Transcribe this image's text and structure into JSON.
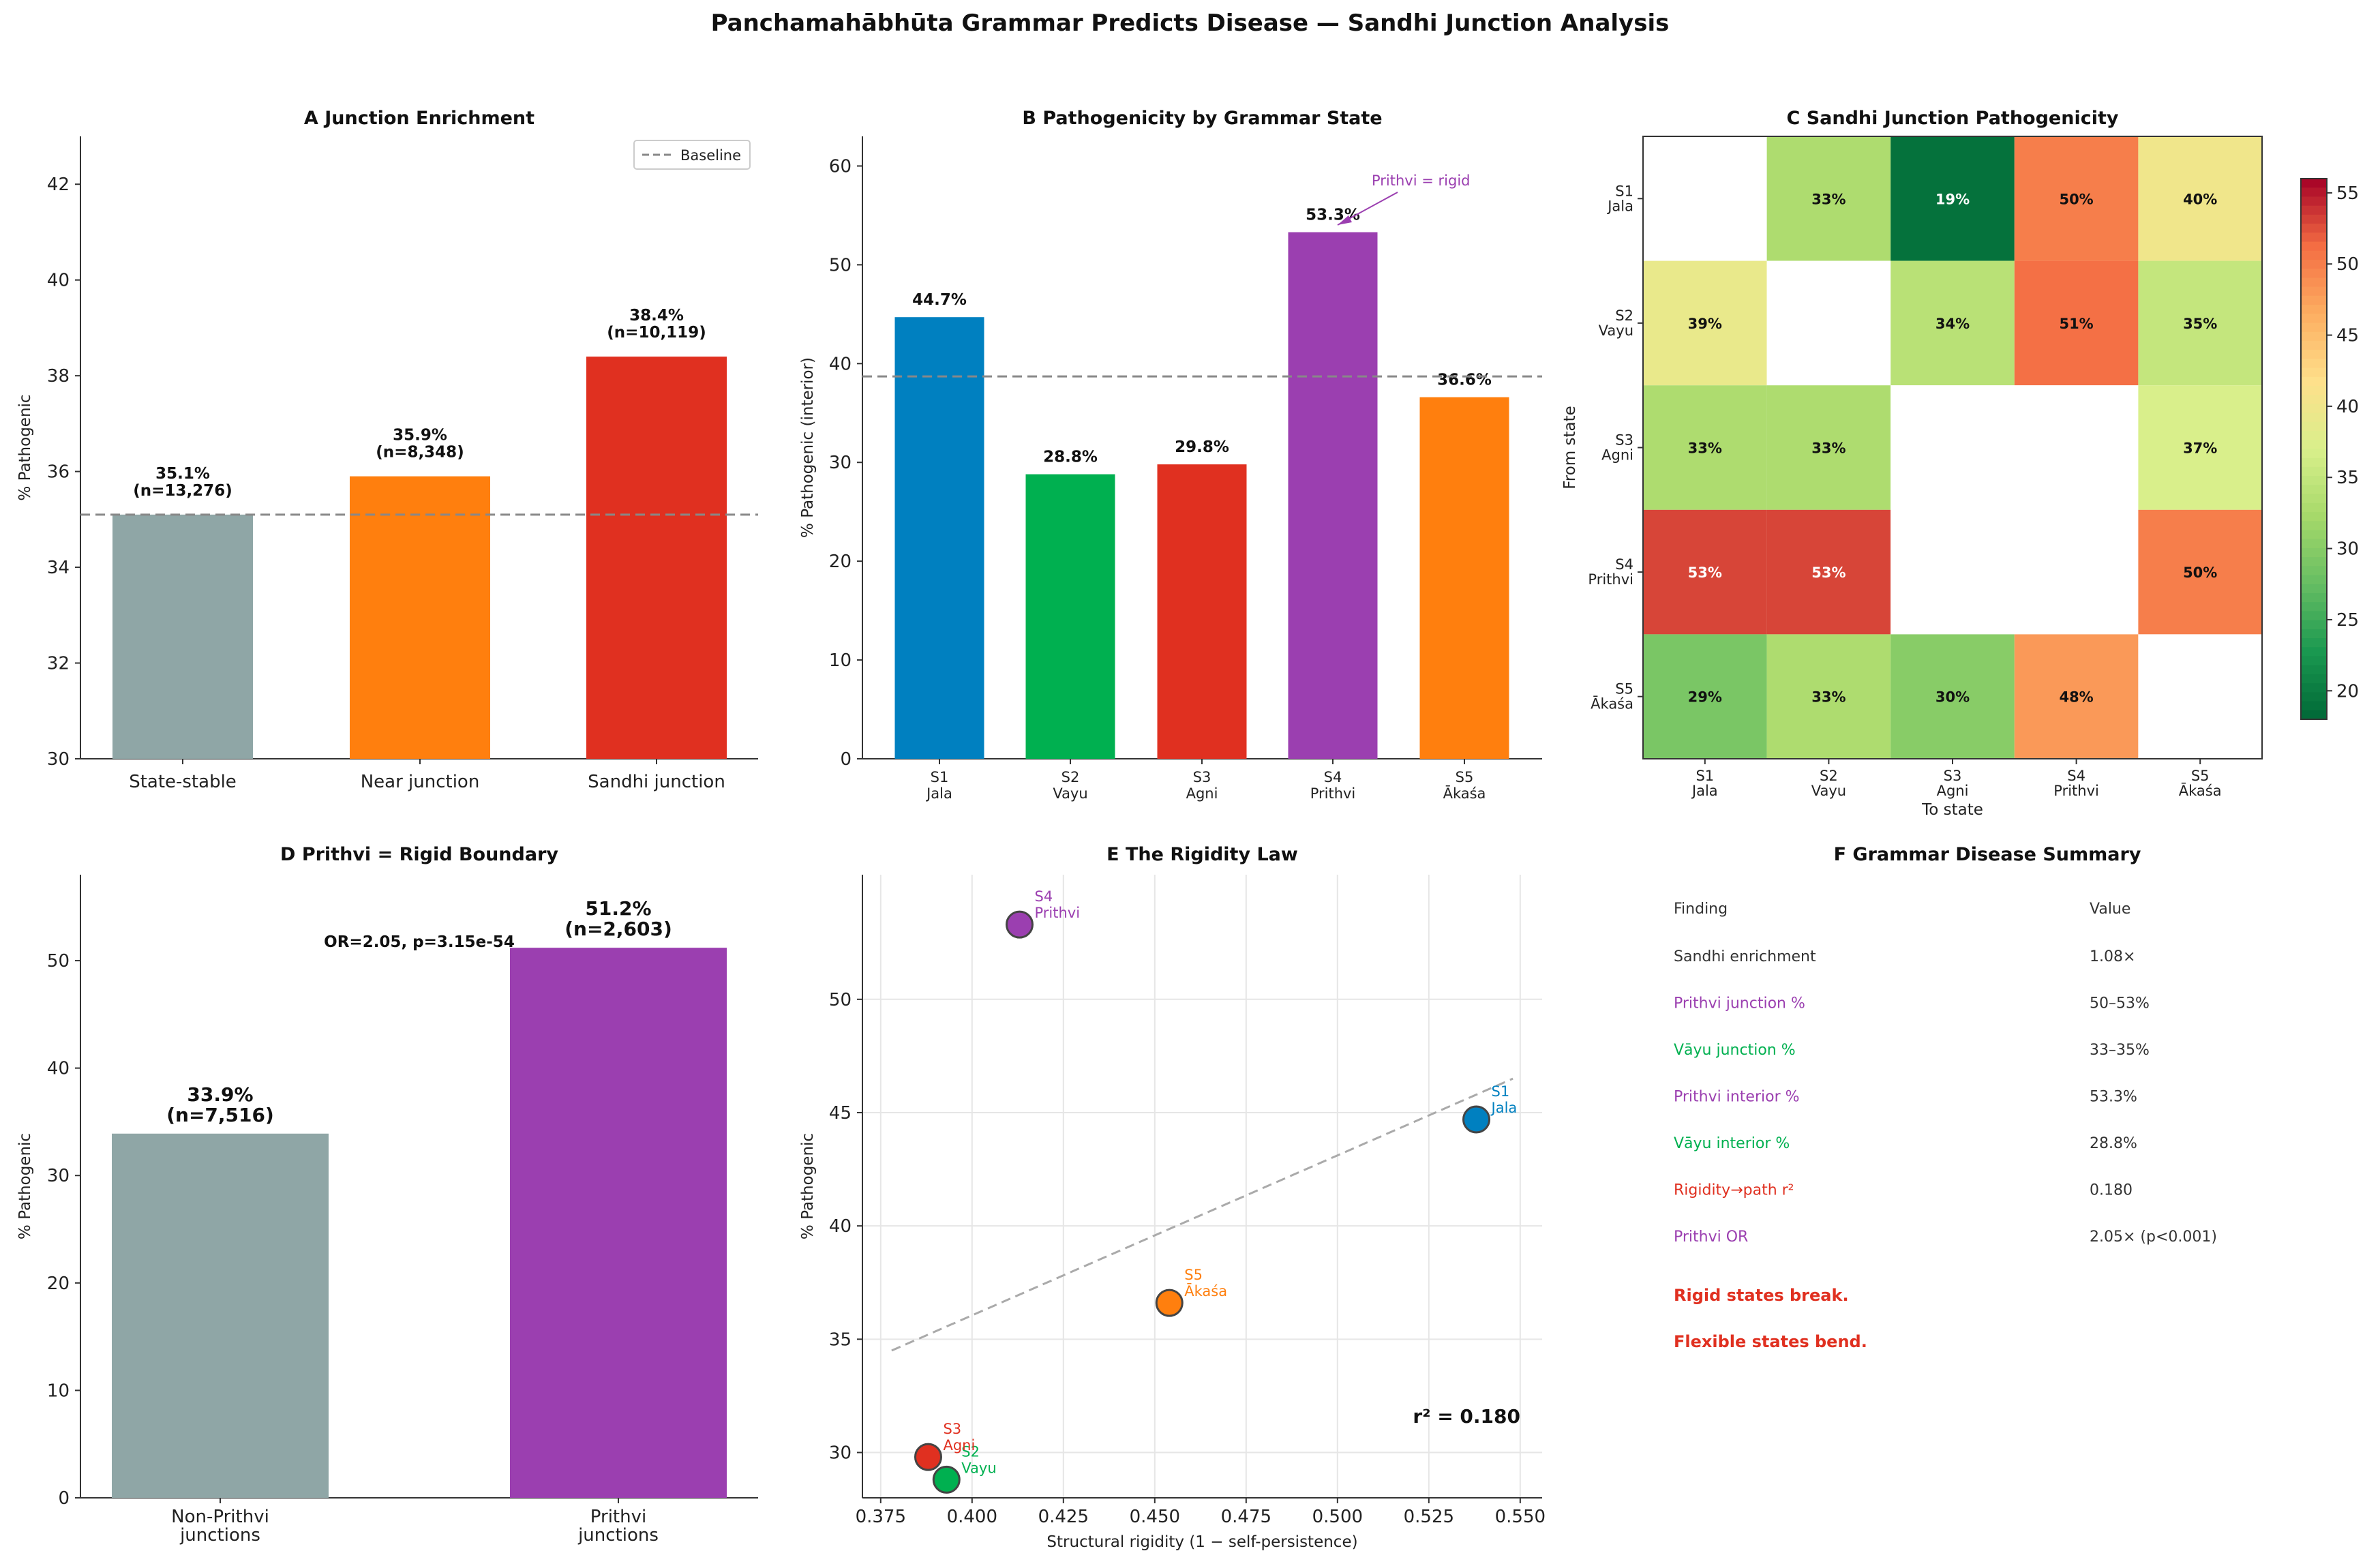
{
  "figure_title": "Panchamahābhūta Grammar Predicts Disease — Sandhi Junction Analysis",
  "colors": {
    "gray": "#8fa6a6",
    "orange": "#ff7f0e",
    "red": "#e03020",
    "blue": "#0080c0",
    "green": "#00b050",
    "purple": "#9b3fb0",
    "dash": "#888888"
  },
  "chart_data": [
    {
      "panel": "A",
      "type": "bar",
      "title": "A   Junction Enrichment",
      "ylabel": "% Pathogenic",
      "ylim": [
        30,
        43
      ],
      "yticks": [
        30,
        32,
        34,
        36,
        38,
        40,
        42
      ],
      "categories": [
        "State-stable",
        "Near junction",
        "Sandhi junction"
      ],
      "values": [
        35.1,
        35.9,
        38.4
      ],
      "labels_pct": [
        "35.1%",
        "35.9%",
        "38.4%"
      ],
      "labels_n": [
        "(n=13,276)",
        "(n=8,348)",
        "(n=10,119)"
      ],
      "bar_colors": [
        "#8fa6a6",
        "#ff7f0e",
        "#e03020"
      ],
      "baseline": 35.1,
      "legend": "Baseline"
    },
    {
      "panel": "B",
      "type": "bar",
      "title": "B   Pathogenicity by Grammar State",
      "ylabel": "% Pathogenic (interior)",
      "ylim": [
        0,
        63
      ],
      "yticks": [
        0,
        10,
        20,
        30,
        40,
        50,
        60
      ],
      "categories": [
        [
          "S1",
          "Jala"
        ],
        [
          "S2",
          "Vayu"
        ],
        [
          "S3",
          "Agni"
        ],
        [
          "S4",
          "Prithvi"
        ],
        [
          "S5",
          "Ākaśa"
        ]
      ],
      "values": [
        44.7,
        28.8,
        29.8,
        53.3,
        36.6
      ],
      "labels": [
        "44.7%",
        "28.8%",
        "29.8%",
        "53.3%",
        "36.6%"
      ],
      "bar_colors": [
        "#0080c0",
        "#00b050",
        "#e03020",
        "#9b3fb0",
        "#ff7f0e"
      ],
      "baseline": 38.7,
      "annotation": "Prithvi  = rigid"
    },
    {
      "panel": "C",
      "type": "heatmap",
      "title": "C   Sandhi Junction Pathogenicity",
      "xlabel": "To state",
      "ylabel": "From state",
      "row_labels": [
        [
          "S1",
          "Jala"
        ],
        [
          "S2",
          "Vayu"
        ],
        [
          "S3",
          "Agni"
        ],
        [
          "S4",
          "Prithvi"
        ],
        [
          "S5",
          "Ākaśa"
        ]
      ],
      "col_labels": [
        [
          "S1",
          "Jala"
        ],
        [
          "S2",
          "Vayu"
        ],
        [
          "S3",
          "Agni"
        ],
        [
          "S4",
          "Prithvi"
        ],
        [
          "S5",
          "Ākaśa"
        ]
      ],
      "matrix": [
        [
          null,
          33,
          19,
          50,
          40
        ],
        [
          39,
          null,
          34,
          51,
          35
        ],
        [
          33,
          33,
          null,
          null,
          37
        ],
        [
          53,
          53,
          null,
          null,
          50
        ],
        [
          29,
          33,
          30,
          48,
          null
        ]
      ],
      "vmin": 18,
      "vmax": 56,
      "cbar_ticks": [
        20,
        25,
        30,
        35,
        40,
        45,
        50,
        55
      ]
    },
    {
      "panel": "D",
      "type": "bar",
      "title": "D   Prithvi = Rigid Boundary",
      "ylabel": "% Pathogenic",
      "ylim": [
        0,
        58
      ],
      "yticks": [
        0,
        10,
        20,
        30,
        40,
        50
      ],
      "categories": [
        [
          "Non-Prithvi",
          "junctions"
        ],
        [
          "Prithvi",
          "junctions"
        ]
      ],
      "values": [
        33.9,
        51.2
      ],
      "labels_pct": [
        "33.9%",
        "51.2%"
      ],
      "labels_n": [
        "(n=7,516)",
        "(n=2,603)"
      ],
      "bar_colors": [
        "#8fa6a6",
        "#9b3fb0"
      ],
      "annotation": "OR=2.05, p=3.15e-54"
    },
    {
      "panel": "E",
      "type": "scatter",
      "title": "E   The Rigidity Law",
      "xlabel": "Structural rigidity (1 − self-persistence)",
      "ylabel": "% Pathogenic",
      "xlim": [
        0.37,
        0.556
      ],
      "ylim": [
        28,
        55.5
      ],
      "xticks": [
        0.375,
        0.4,
        0.425,
        0.45,
        0.475,
        0.5,
        0.525,
        0.55
      ],
      "xtick_labels": [
        "0.375",
        "0.400",
        "0.425",
        "0.450",
        "0.475",
        "0.500",
        "0.525",
        "0.550"
      ],
      "yticks": [
        30,
        35,
        40,
        45,
        50
      ],
      "points": [
        {
          "state": "S1",
          "name": "Jala",
          "x": 0.538,
          "y": 44.7,
          "color": "#0080c0"
        },
        {
          "state": "S2",
          "name": "Vayu",
          "x": 0.393,
          "y": 28.8,
          "color": "#00b050"
        },
        {
          "state": "S3",
          "name": "Agni",
          "x": 0.388,
          "y": 29.8,
          "color": "#e03020"
        },
        {
          "state": "S4",
          "name": "Prithvi",
          "x": 0.413,
          "y": 53.3,
          "color": "#9b3fb0"
        },
        {
          "state": "S5",
          "name": "Ākaśa",
          "x": 0.454,
          "y": 36.6,
          "color": "#ff7f0e"
        }
      ],
      "fit_line": {
        "x0": 0.378,
        "y0": 34.5,
        "x1": 0.548,
        "y1": 46.5
      },
      "r2_label": "r² = 0.180"
    }
  ],
  "summary": {
    "title": "F   Grammar Disease Summary",
    "header": [
      "Finding",
      "Value"
    ],
    "rows": [
      {
        "finding": "Sandhi enrichment",
        "value": "1.08×",
        "color": "#333333"
      },
      {
        "finding": "Prithvi junction %",
        "value": "50–53%",
        "color": "#9b3fb0"
      },
      {
        "finding": "Vāyu junction %",
        "value": "33–35%",
        "color": "#00b050"
      },
      {
        "finding": "Prithvi interior %",
        "value": "53.3%",
        "color": "#9b3fb0"
      },
      {
        "finding": "Vāyu interior %",
        "value": "28.8%",
        "color": "#00b050"
      },
      {
        "finding": "Rigidity→path r²",
        "value": "0.180",
        "color": "#e03020"
      },
      {
        "finding": "Prithvi OR",
        "value": "2.05× (p<0.001)",
        "color": "#9b3fb0"
      }
    ],
    "conclusions": [
      "Rigid states break.",
      "Flexible states bend."
    ]
  }
}
